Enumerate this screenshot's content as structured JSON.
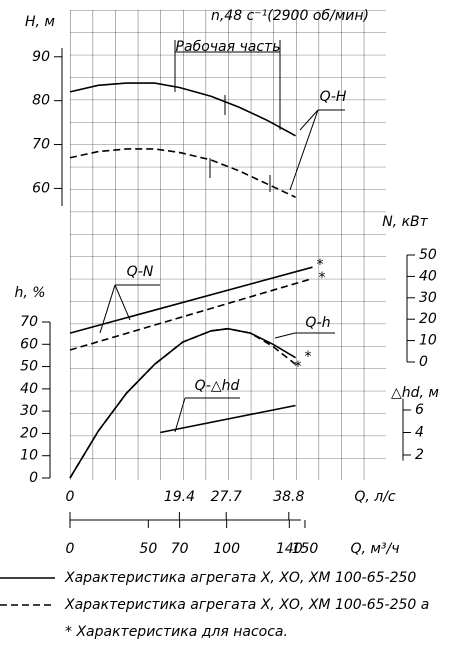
{
  "chart_data": [
    {
      "type": "line",
      "title": "n,48 с⁻¹(2900 об/мин)",
      "ylabel": "H, м",
      "yaxis": "left",
      "ylim": [
        56,
        92
      ],
      "yticks": [
        60,
        70,
        80,
        90
      ],
      "xlabel": "Q, л/с",
      "xlim": [
        0,
        56
      ],
      "xticks": [
        0,
        19.4,
        27.7,
        38.8
      ],
      "x2label": "Q, м³/ч",
      "x2lim": [
        0,
        201.6
      ],
      "x2ticks": [
        0,
        50,
        70,
        100,
        140,
        150
      ],
      "x": [
        0,
        5,
        10,
        15,
        19.4,
        25,
        30,
        35,
        40
      ],
      "series": [
        {
          "color": "#000000",
          "style": "solid",
          "values": [
            82,
            83.5,
            84,
            84,
            83,
            81,
            78.5,
            75.5,
            72
          ]
        },
        {
          "color": "#000000",
          "style": "dashed",
          "values": [
            67,
            68.4,
            69,
            69,
            68.2,
            66.5,
            64,
            61,
            58
          ]
        }
      ],
      "annotations": [
        "Рабочая часть",
        "Q-H"
      ]
    },
    {
      "type": "line",
      "ylabel": "N, кВт",
      "yaxis": "right",
      "ylim": [
        0,
        50
      ],
      "yticks": [
        0,
        10,
        20,
        30,
        40,
        50
      ],
      "x": [
        0,
        43
      ],
      "series": [
        {
          "color": "#000000",
          "style": "solid",
          "values": [
            13.5,
            44.3
          ]
        },
        {
          "color": "#000000",
          "style": "dashed",
          "values": [
            5.6,
            39
          ]
        }
      ],
      "annotations": [
        "Q-N",
        "*",
        "*"
      ]
    },
    {
      "type": "line",
      "ylabel": "h, %",
      "yaxis": "left",
      "ylim": [
        0,
        70
      ],
      "yticks": [
        0,
        10,
        20,
        30,
        40,
        50,
        60,
        70
      ],
      "x": [
        0,
        5,
        10,
        15,
        20,
        25,
        28,
        32,
        36,
        40
      ],
      "series": [
        {
          "color": "#000000",
          "style": "solid",
          "values": [
            0,
            21,
            38,
            51,
            61,
            66,
            67,
            65,
            60,
            54
          ]
        },
        {
          "color": "#000000",
          "style": "dashed",
          "values": [
            0,
            21,
            38,
            51,
            61,
            66,
            67,
            65,
            59,
            51
          ]
        }
      ],
      "annotations": [
        "Q-h",
        "*",
        "*"
      ]
    },
    {
      "type": "line",
      "ylabel": "△hd, м",
      "yaxis": "right",
      "ylim": [
        1.5,
        7
      ],
      "yticks": [
        2,
        4,
        6
      ],
      "x": [
        16,
        40
      ],
      "series": [
        {
          "color": "#000000",
          "style": "solid",
          "values": [
            4.0,
            6.4
          ]
        }
      ],
      "annotations": [
        "Q-△hd"
      ]
    }
  ],
  "legend": [
    {
      "label": "Характеристика агрегата Х, ХО, ХМ 100-65-250",
      "style": "solid"
    },
    {
      "label": "Характеристика агрегата Х, ХО, ХМ 100-65-250 а",
      "style": "dashed"
    }
  ],
  "footnote": "* Характеристика для насоса."
}
